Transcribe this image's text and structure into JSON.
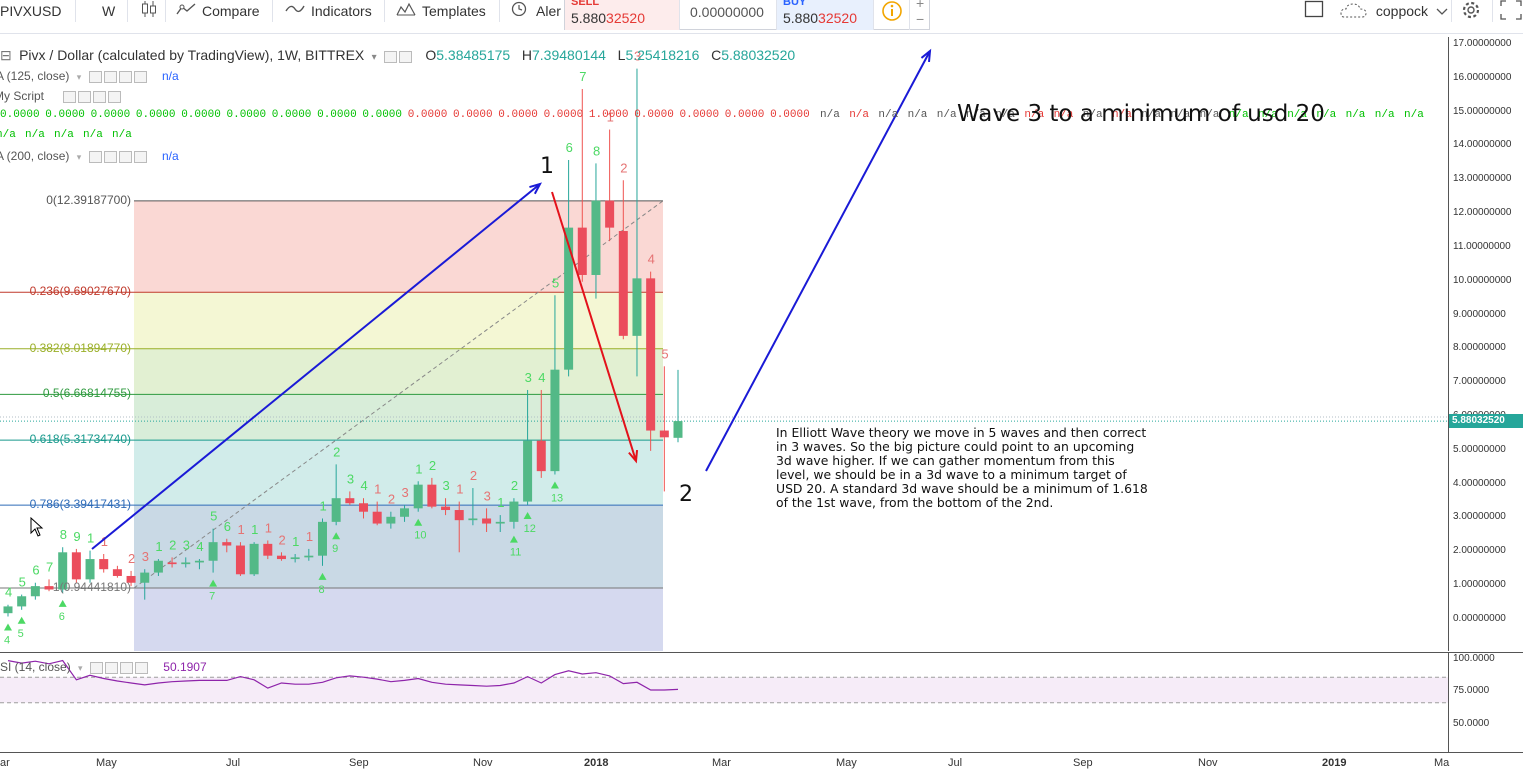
{
  "toolbar": {
    "symbol": "PIVXUSD",
    "interval": "W",
    "compare": "Compare",
    "indicators": "Indicators",
    "templates": "Templates",
    "alert": "Aler",
    "sell_label": "SELL",
    "sell_price_a": "5.880",
    "sell_price_b": "32520",
    "spread": "0.00000000",
    "buy_label": "BUY",
    "buy_price_a": "5.880",
    "buy_price_b": "32520",
    "username": "coppock",
    "plus": "+",
    "minus": "−"
  },
  "legend": {
    "title": "Pivx / Dollar (calculated by TradingView), 1W, BITTREX",
    "o_key": "O",
    "o_val": "5.38485175",
    "h_key": "H",
    "h_val": "7.39480144",
    "l_key": "L",
    "l_val": "5.25418216",
    "c_key": "C",
    "c_val": "5.88032520",
    "ma125": "MA (125, close)",
    "ma125_val": "n/a",
    "script": "My Script",
    "ma200": "MA (200, close)",
    "ma200_val": "n/a"
  },
  "value_row_a": [
    {
      "t": "0.0000",
      "c": "#00c000"
    },
    {
      "t": "0.0000",
      "c": "#00c000"
    },
    {
      "t": "0.0000",
      "c": "#00c000"
    },
    {
      "t": "0.0000",
      "c": "#00c000"
    },
    {
      "t": "0.0000",
      "c": "#00c000"
    },
    {
      "t": "0.0000",
      "c": "#00c000"
    },
    {
      "t": "0.0000",
      "c": "#00c000"
    },
    {
      "t": "0.0000",
      "c": "#00c000"
    },
    {
      "t": "0.0000",
      "c": "#00c000"
    },
    {
      "t": "0.0000",
      "c": "#e53935"
    },
    {
      "t": "0.0000",
      "c": "#e53935"
    },
    {
      "t": "0.0000",
      "c": "#e53935"
    },
    {
      "t": "0.0000",
      "c": "#e53935"
    },
    {
      "t": "1.0000",
      "c": "#e53935"
    },
    {
      "t": "0.0000",
      "c": "#e53935"
    },
    {
      "t": "0.0000",
      "c": "#e53935"
    },
    {
      "t": "0.0000",
      "c": "#e53935"
    },
    {
      "t": "0.0000",
      "c": "#e53935"
    },
    {
      "t": "n/a",
      "c": "#555555"
    },
    {
      "t": "n/a",
      "c": "#e53935"
    },
    {
      "t": "n/a",
      "c": "#555555"
    },
    {
      "t": "n/a",
      "c": "#555555"
    },
    {
      "t": "n/a",
      "c": "#555555"
    },
    {
      "t": "n/a",
      "c": "#555555"
    },
    {
      "t": "n/a",
      "c": "#555555"
    },
    {
      "t": "n/a",
      "c": "#e53935"
    },
    {
      "t": "n/a",
      "c": "#e53935"
    },
    {
      "t": "n/a",
      "c": "#555555"
    },
    {
      "t": "n/a",
      "c": "#e53935"
    },
    {
      "t": "n/a",
      "c": "#555555"
    },
    {
      "t": "n/a",
      "c": "#555555"
    },
    {
      "t": "n/a",
      "c": "#555555"
    },
    {
      "t": "n/a",
      "c": "#00c000"
    },
    {
      "t": "n/a",
      "c": "#00c000"
    },
    {
      "t": "n/a",
      "c": "#00c000"
    },
    {
      "t": "n/a",
      "c": "#00c000"
    },
    {
      "t": "n/a",
      "c": "#00c000"
    },
    {
      "t": "n/a",
      "c": "#00c000"
    },
    {
      "t": "n/a",
      "c": "#00c000"
    }
  ],
  "value_row_b": [
    "n/a",
    "n/a",
    "n/a",
    "n/a",
    "n/a"
  ],
  "fib": [
    {
      "label": "0(12.39187700)",
      "price": 12.391877,
      "color": "#555555"
    },
    {
      "label": "0.236(9.69027670)",
      "price": 9.6902767,
      "color": "#c0392b"
    },
    {
      "label": "0.382(8.01894770)",
      "price": 8.0189477,
      "color": "#9aaf28"
    },
    {
      "label": "0.5(6.66814755)",
      "price": 6.66814755,
      "color": "#2e9a3e"
    },
    {
      "label": "0.618(5.31734740)",
      "price": 5.3173474,
      "color": "#17998c"
    },
    {
      "label": "0.786(3.39417431)",
      "price": 3.39417431,
      "color": "#2e6bb8"
    },
    {
      "label": "1(0.94441810)",
      "price": 0.9444181,
      "color": "#777777"
    }
  ],
  "price_ticks": [
    "17.00000000",
    "16.00000000",
    "15.00000000",
    "14.00000000",
    "13.00000000",
    "12.00000000",
    "11.00000000",
    "10.00000000",
    "9.00000000",
    "8.00000000",
    "7.00000000",
    "6.00000000",
    "5.00000000",
    "4.00000000",
    "3.00000000",
    "2.00000000",
    "1.00000000",
    "0.00000000"
  ],
  "last_price": "5.88032520",
  "time_ticks": [
    {
      "label": "ar",
      "x": 0
    },
    {
      "label": "May",
      "x": 96
    },
    {
      "label": "Jul",
      "x": 226
    },
    {
      "label": "Sep",
      "x": 349
    },
    {
      "label": "Nov",
      "x": 473
    },
    {
      "label": "2018",
      "x": 584
    },
    {
      "label": "Mar",
      "x": 712
    },
    {
      "label": "May",
      "x": 836
    },
    {
      "label": "Jul",
      "x": 948
    },
    {
      "label": "Sep",
      "x": 1073
    },
    {
      "label": "Nov",
      "x": 1198
    },
    {
      "label": "2019",
      "x": 1322
    },
    {
      "label": "Ma",
      "x": 1434
    }
  ],
  "rsi": {
    "title": "RSI (14, close)",
    "title_visible": "SI (14, close)",
    "value": "50.1907",
    "ticks": [
      "100.0000",
      "75.0000",
      "50.0000"
    ]
  },
  "annotations": {
    "wave3": "Wave 3 to a minimum of usd 20",
    "wave1": "1",
    "wave2": "2",
    "note": "In Elliott Wave theory we move in 5 waves and then correct\nin 3 waves. So the big picture could point to an upcoming\n3d wave higher. If we can gather momentum from this\nlevel, we should be in a 3d wave to a minimum target of\nUSD 20. A standard 3d wave should be a minimum of 1.618\nof the 1st wave, from the bottom of the 2nd."
  },
  "chart_data": {
    "type": "candlestick",
    "symbol": "PIVXUSD",
    "interval": "1W",
    "exchange": "BITTREX",
    "ylim": [
      -0.7,
      17.2
    ],
    "candles": [
      {
        "o": 0.2,
        "h": 0.45,
        "l": 0.1,
        "c": 0.4
      },
      {
        "o": 0.4,
        "h": 0.75,
        "l": 0.3,
        "c": 0.7
      },
      {
        "o": 0.7,
        "h": 1.1,
        "l": 0.6,
        "c": 1.0
      },
      {
        "o": 1.0,
        "h": 1.2,
        "l": 0.85,
        "c": 0.9
      },
      {
        "o": 0.9,
        "h": 2.15,
        "l": 0.8,
        "c": 2.0
      },
      {
        "o": 2.0,
        "h": 2.1,
        "l": 1.1,
        "c": 1.2
      },
      {
        "o": 1.2,
        "h": 2.05,
        "l": 1.1,
        "c": 1.8
      },
      {
        "o": 1.8,
        "h": 1.95,
        "l": 1.4,
        "c": 1.5
      },
      {
        "o": 1.5,
        "h": 1.6,
        "l": 1.25,
        "c": 1.3
      },
      {
        "o": 1.3,
        "h": 1.45,
        "l": 1.0,
        "c": 1.1
      },
      {
        "o": 1.1,
        "h": 1.5,
        "l": 0.6,
        "c": 1.4
      },
      {
        "o": 1.4,
        "h": 1.8,
        "l": 1.3,
        "c": 1.75
      },
      {
        "o": 1.7,
        "h": 1.85,
        "l": 1.55,
        "c": 1.65
      },
      {
        "o": 1.65,
        "h": 1.85,
        "l": 1.55,
        "c": 1.7
      },
      {
        "o": 1.7,
        "h": 1.8,
        "l": 1.5,
        "c": 1.75
      },
      {
        "o": 1.75,
        "h": 2.7,
        "l": 1.4,
        "c": 2.3
      },
      {
        "o": 2.3,
        "h": 2.4,
        "l": 2.0,
        "c": 2.2
      },
      {
        "o": 2.2,
        "h": 2.3,
        "l": 1.3,
        "c": 1.35
      },
      {
        "o": 1.35,
        "h": 2.3,
        "l": 1.3,
        "c": 2.25
      },
      {
        "o": 2.25,
        "h": 2.35,
        "l": 1.8,
        "c": 1.9
      },
      {
        "o": 1.9,
        "h": 2.0,
        "l": 1.75,
        "c": 1.8
      },
      {
        "o": 1.8,
        "h": 1.95,
        "l": 1.7,
        "c": 1.85
      },
      {
        "o": 1.85,
        "h": 2.1,
        "l": 1.75,
        "c": 1.9
      },
      {
        "o": 1.9,
        "h": 3.0,
        "l": 1.6,
        "c": 2.9
      },
      {
        "o": 2.9,
        "h": 4.6,
        "l": 2.8,
        "c": 3.6
      },
      {
        "o": 3.6,
        "h": 3.8,
        "l": 3.4,
        "c": 3.45
      },
      {
        "o": 3.45,
        "h": 3.6,
        "l": 3.0,
        "c": 3.2
      },
      {
        "o": 3.2,
        "h": 3.5,
        "l": 2.8,
        "c": 2.85
      },
      {
        "o": 2.85,
        "h": 3.2,
        "l": 2.7,
        "c": 3.05
      },
      {
        "o": 3.05,
        "h": 3.4,
        "l": 2.9,
        "c": 3.3
      },
      {
        "o": 3.3,
        "h": 4.1,
        "l": 3.2,
        "c": 4.0
      },
      {
        "o": 4.0,
        "h": 4.2,
        "l": 3.3,
        "c": 3.35
      },
      {
        "o": 3.35,
        "h": 3.6,
        "l": 3.1,
        "c": 3.25
      },
      {
        "o": 3.25,
        "h": 3.5,
        "l": 2.0,
        "c": 2.95
      },
      {
        "o": 2.95,
        "h": 3.9,
        "l": 2.8,
        "c": 3.0
      },
      {
        "o": 3.0,
        "h": 3.3,
        "l": 2.6,
        "c": 2.85
      },
      {
        "o": 2.85,
        "h": 3.1,
        "l": 2.6,
        "c": 2.9
      },
      {
        "o": 2.9,
        "h": 3.6,
        "l": 2.7,
        "c": 3.5
      },
      {
        "o": 3.5,
        "h": 6.8,
        "l": 3.4,
        "c": 5.3
      },
      {
        "o": 5.3,
        "h": 6.8,
        "l": 4.2,
        "c": 4.4
      },
      {
        "o": 4.4,
        "h": 9.6,
        "l": 4.3,
        "c": 7.4
      },
      {
        "o": 7.4,
        "h": 13.6,
        "l": 7.2,
        "c": 11.6
      },
      {
        "o": 11.6,
        "h": 15.7,
        "l": 10.0,
        "c": 10.2
      },
      {
        "o": 10.2,
        "h": 13.5,
        "l": 9.5,
        "c": 12.4
      },
      {
        "o": 12.4,
        "h": 14.5,
        "l": 11.2,
        "c": 11.6
      },
      {
        "o": 11.5,
        "h": 13.0,
        "l": 8.3,
        "c": 8.4
      },
      {
        "o": 8.4,
        "h": 16.3,
        "l": 7.2,
        "c": 10.1
      },
      {
        "o": 10.1,
        "h": 10.3,
        "l": 5.0,
        "c": 5.6
      },
      {
        "o": 5.6,
        "h": 7.5,
        "l": 3.8,
        "c": 5.4
      },
      {
        "o": 5.38485175,
        "h": 7.39480144,
        "l": 5.25418216,
        "c": 5.8803252
      }
    ],
    "rsi_values": [
      96,
      92,
      95,
      91,
      96,
      66,
      73,
      68,
      64,
      61,
      58,
      61,
      63,
      64,
      65,
      65,
      65,
      71,
      66,
      53,
      61,
      59,
      59,
      62,
      69,
      72,
      70,
      67,
      63,
      65,
      68,
      62,
      59,
      58,
      57,
      56,
      57,
      61,
      71,
      61,
      74,
      80,
      75,
      77,
      72,
      60,
      62,
      50,
      50,
      51
    ]
  }
}
